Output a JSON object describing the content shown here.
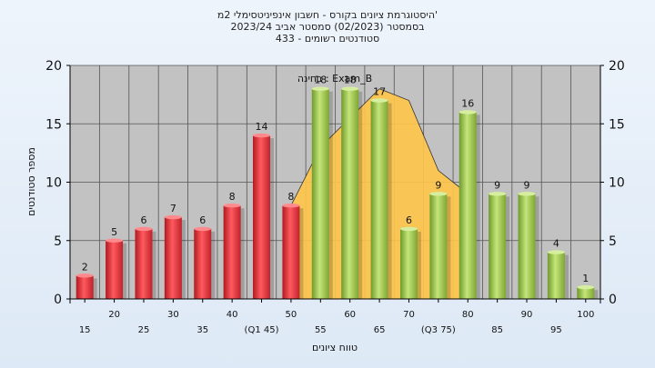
{
  "chart_data": {
    "type": "bar",
    "title_lines": [
      "היסטוגרמת ציונים בקורס - חשבון אינפיניטסימלי 2מ'",
      "בסמסטר  (02/2023)  סמסטר אביב 2023/24",
      "סטודנטים רשומים - 433"
    ],
    "ylabel": "מספר סטודנטים",
    "xlabel": "טווח ציונים",
    "legend_text": "בחינה : Exam_B",
    "ylim": [
      0,
      20
    ],
    "y_ticks": [
      "0",
      "5",
      "10",
      "15",
      "20"
    ],
    "categories": [
      "15",
      "20",
      "25",
      "30",
      "35",
      "40",
      "(Q1 45)",
      "50",
      "55",
      "60",
      "65",
      "70",
      "(Q3 75)",
      "80",
      "85",
      "90",
      "95",
      "100"
    ],
    "values": [
      2,
      5,
      6,
      7,
      6,
      8,
      14,
      8,
      18,
      18,
      17,
      6,
      9,
      16,
      9,
      9,
      4,
      1
    ],
    "value_labels": [
      "2",
      "5",
      "6",
      "7",
      "6",
      "8",
      "14",
      "8",
      "18",
      "18",
      "17",
      "6",
      "9",
      "16",
      "9",
      "9",
      "4",
      "1"
    ],
    "bar_groups": [
      "low",
      "low",
      "low",
      "low",
      "low",
      "low",
      "low",
      "low",
      "high",
      "high",
      "high",
      "high",
      "high",
      "high",
      "high",
      "high",
      "high",
      "high"
    ],
    "area_start_index": 7,
    "area_end_index": 12,
    "area_values": [
      8,
      13,
      15.5,
      18,
      17,
      11,
      9
    ],
    "grid": true,
    "colors": {
      "low": "#e8343a",
      "high": "#9ccc4e",
      "area": "#ffc64a",
      "plot_bg": "#c2c2c2",
      "grid": "#555555"
    }
  }
}
